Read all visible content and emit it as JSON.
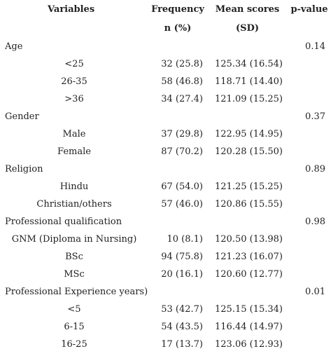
{
  "header": {
    "variables": "Variables",
    "frequency": "Frequency",
    "frequency_unit": "n (%)",
    "mean": "Mean scores",
    "mean_unit": "(SD)",
    "pvalue": "p-value"
  },
  "rows": [
    {
      "kind": "group",
      "label": "Age",
      "p": "0.14"
    },
    {
      "kind": "sub",
      "label": "<25",
      "freq": "32 (25.8)",
      "mean": "125.34 (16.54)"
    },
    {
      "kind": "sub",
      "label": "26-35",
      "freq": "58 (46.8)",
      "mean": "118.71 (14.40)"
    },
    {
      "kind": "sub",
      "label": ">36",
      "freq": "34 (27.4)",
      "mean": "121.09 (15.25)"
    },
    {
      "kind": "group",
      "label": "Gender",
      "p": "0.37"
    },
    {
      "kind": "sub",
      "label": "Male",
      "freq": "37 (29.8)",
      "mean": "122.95 (14.95)"
    },
    {
      "kind": "sub",
      "label": "Female",
      "freq": "87 (70.2)",
      "mean": "120.28 (15.50)"
    },
    {
      "kind": "group",
      "label": "Religion",
      "p": "0.89"
    },
    {
      "kind": "sub",
      "label": "Hindu",
      "freq": "67 (54.0)",
      "mean": "121.25 (15.25)"
    },
    {
      "kind": "sub",
      "label": "Christian/others",
      "freq": "57 (46.0)",
      "mean": "120.86 (15.55)"
    },
    {
      "kind": "group",
      "label": "Professional qualification",
      "p": "0.98"
    },
    {
      "kind": "sub",
      "label": "GNM (Diploma in Nursing)",
      "freq": "10 (8.1)",
      "mean": "120.50 (13.98)"
    },
    {
      "kind": "sub",
      "label": "BSc",
      "freq": "94 (75.8)",
      "mean": "121.23 (16.07)"
    },
    {
      "kind": "sub",
      "label": "MSc",
      "freq": "20 (16.1)",
      "mean": "120.60 (12.77)"
    },
    {
      "kind": "group",
      "label": "Professional Experience years)",
      "p": "0.01"
    },
    {
      "kind": "sub",
      "label": "<5",
      "freq": "53 (42.7)",
      "mean": "125.15 (15.34)"
    },
    {
      "kind": "sub",
      "label": "6-15",
      "freq": "54 (43.5)",
      "mean": "116.44 (14.97)"
    },
    {
      "kind": "sub",
      "label": "16-25",
      "freq": "17 (13.7)",
      "mean": "123.06 (12.93)"
    }
  ]
}
